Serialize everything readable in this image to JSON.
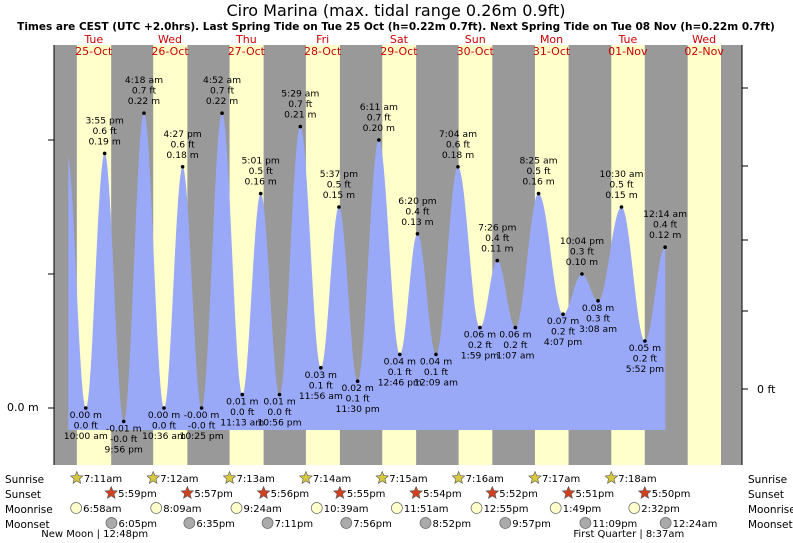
{
  "chart_data": {
    "type": "area",
    "title": "Ciro Marina (max. tidal range 0.26m 0.9ft)",
    "subtitle": "Times are CEST (UTC +2.0hrs). Last Spring Tide on Tue 25 Oct (h=0.22m 0.7ft). Next Spring Tide on Tue 08 Nov (h=0.22m 0.7ft)",
    "y_left_label": "0.0 m",
    "y_right_label": "0 ft",
    "days": [
      {
        "name": "Tue",
        "date": "25-Oct"
      },
      {
        "name": "Wed",
        "date": "26-Oct"
      },
      {
        "name": "Thu",
        "date": "27-Oct"
      },
      {
        "name": "Fri",
        "date": "28-Oct"
      },
      {
        "name": "Sat",
        "date": "29-Oct"
      },
      {
        "name": "Sun",
        "date": "30-Oct"
      },
      {
        "name": "Mon",
        "date": "31-Oct"
      },
      {
        "name": "Tue",
        "date": "01-Nov"
      },
      {
        "name": "Wed",
        "date": "02-Nov"
      }
    ],
    "tides": [
      {
        "time": "10:00 am",
        "m": "0.00 m",
        "ft": "0.0 ft",
        "h": 0.0,
        "t": 10.0,
        "type": "low"
      },
      {
        "time": "3:55 pm",
        "m": "0.19 m",
        "ft": "0.6 ft",
        "h": 0.19,
        "t": 15.92,
        "type": "high"
      },
      {
        "time": "9:56 pm",
        "m": "-0.01 m",
        "ft": "-0.0 ft",
        "h": -0.01,
        "t": 21.93,
        "type": "low"
      },
      {
        "time": "4:18 am",
        "m": "0.22 m",
        "ft": "0.7 ft",
        "h": 0.22,
        "t": 28.3,
        "type": "high"
      },
      {
        "time": "10:36 am",
        "m": "0.00 m",
        "ft": "0.0 ft",
        "h": 0.0,
        "t": 34.6,
        "type": "low"
      },
      {
        "time": "4:27 pm",
        "m": "0.18 m",
        "ft": "0.6 ft",
        "h": 0.18,
        "t": 40.45,
        "type": "high"
      },
      {
        "time": "10:25 pm",
        "m": "-0.00 m",
        "ft": "-0.0 ft",
        "h": 0.0,
        "t": 46.42,
        "type": "low"
      },
      {
        "time": "4:52 am",
        "m": "0.22 m",
        "ft": "0.7 ft",
        "h": 0.22,
        "t": 52.87,
        "type": "high"
      },
      {
        "time": "11:13 am",
        "m": "0.01 m",
        "ft": "0.0 ft",
        "h": 0.01,
        "t": 59.22,
        "type": "low"
      },
      {
        "time": "5:01 pm",
        "m": "0.16 m",
        "ft": "0.5 ft",
        "h": 0.16,
        "t": 65.02,
        "type": "high"
      },
      {
        "time": "10:56 pm",
        "m": "0.01 m",
        "ft": "0.0 ft",
        "h": 0.01,
        "t": 70.93,
        "type": "low"
      },
      {
        "time": "5:29 am",
        "m": "0.21 m",
        "ft": "0.7 ft",
        "h": 0.21,
        "t": 77.48,
        "type": "high"
      },
      {
        "time": "11:56 am",
        "m": "0.03 m",
        "ft": "0.1 ft",
        "h": 0.03,
        "t": 83.93,
        "type": "low"
      },
      {
        "time": "5:37 pm",
        "m": "0.15 m",
        "ft": "0.5 ft",
        "h": 0.15,
        "t": 89.62,
        "type": "high"
      },
      {
        "time": "11:30 pm",
        "m": "0.02 m",
        "ft": "0.1 ft",
        "h": 0.02,
        "t": 95.5,
        "type": "low"
      },
      {
        "time": "6:11 am",
        "m": "0.20 m",
        "ft": "0.7 ft",
        "h": 0.2,
        "t": 102.18,
        "type": "high"
      },
      {
        "time": "12:46 pm",
        "m": "0.04 m",
        "ft": "0.1 ft",
        "h": 0.04,
        "t": 108.77,
        "type": "low"
      },
      {
        "time": "6:20 pm",
        "m": "0.13 m",
        "ft": "0.4 ft",
        "h": 0.13,
        "t": 114.33,
        "type": "high"
      },
      {
        "time": "12:09 am",
        "m": "0.04 m",
        "ft": "0.1 ft",
        "h": 0.04,
        "t": 120.15,
        "type": "low"
      },
      {
        "time": "7:04 am",
        "m": "0.18 m",
        "ft": "0.6 ft",
        "h": 0.18,
        "t": 127.07,
        "type": "high"
      },
      {
        "time": "1:59 pm",
        "m": "0.06 m",
        "ft": "0.2 ft",
        "h": 0.06,
        "t": 133.98,
        "type": "low"
      },
      {
        "time": "7:26 pm",
        "m": "0.11 m",
        "ft": "0.4 ft",
        "h": 0.11,
        "t": 139.43,
        "type": "high"
      },
      {
        "time": "1:07 am",
        "m": "0.06 m",
        "ft": "0.2 ft",
        "h": 0.06,
        "t": 145.12,
        "type": "low"
      },
      {
        "time": "8:25 am",
        "m": "0.16 m",
        "ft": "0.5 ft",
        "h": 0.16,
        "t": 152.42,
        "type": "high"
      },
      {
        "time": "4:07 pm",
        "m": "0.07 m",
        "ft": "0.2 ft",
        "h": 0.07,
        "t": 160.12,
        "type": "low"
      },
      {
        "time": "10:04 pm",
        "m": "0.10 m",
        "ft": "0.3 ft",
        "h": 0.1,
        "t": 166.07,
        "type": "high"
      },
      {
        "time": "3:08 am",
        "m": "0.08 m",
        "ft": "0.3 ft",
        "h": 0.08,
        "t": 171.13,
        "type": "low"
      },
      {
        "time": "10:30 am",
        "m": "0.15 m",
        "ft": "0.5 ft",
        "h": 0.15,
        "t": 178.5,
        "type": "high"
      },
      {
        "time": "5:52 pm",
        "m": "0.05 m",
        "ft": "0.2 ft",
        "h": 0.05,
        "t": 185.87,
        "type": "low"
      },
      {
        "time": "12:14 am",
        "m": "0.12 m",
        "ft": "0.4 ft",
        "h": 0.12,
        "t": 192.23,
        "type": "high"
      }
    ],
    "sunrise": [
      "7:11am",
      "7:12am",
      "7:13am",
      "7:14am",
      "7:15am",
      "7:16am",
      "7:17am",
      "7:18am"
    ],
    "sunset": [
      "5:59pm",
      "5:57pm",
      "5:56pm",
      "5:55pm",
      "5:54pm",
      "5:52pm",
      "5:51pm",
      "5:50pm"
    ],
    "moonrise": [
      "6:58am",
      "8:09am",
      "9:24am",
      "10:39am",
      "11:51am",
      "12:55pm",
      "1:49pm",
      "2:32pm"
    ],
    "moonset": [
      "6:05pm",
      "6:35pm",
      "7:11pm",
      "7:56pm",
      "8:52pm",
      "9:57pm",
      "11:09pm",
      "12:24am"
    ],
    "moon_phases": [
      {
        "label": "New Moon | 12:48pm",
        "day": 0
      },
      {
        "label": "First Quarter | 8:37am",
        "day": 7
      }
    ],
    "row_labels": {
      "sunrise": "Sunrise",
      "sunset": "Sunset",
      "moonrise": "Moonrise",
      "moonset": "Moonset"
    },
    "colors": {
      "night": "#999999",
      "day": "#ffffcc",
      "water": "#9aa8f8",
      "day_label": "#cc0000",
      "star_sunrise": "#d8c840",
      "star_sunset": "#d04020",
      "moonrise": "#ffffcc",
      "moonset": "#aaaaaa"
    }
  }
}
